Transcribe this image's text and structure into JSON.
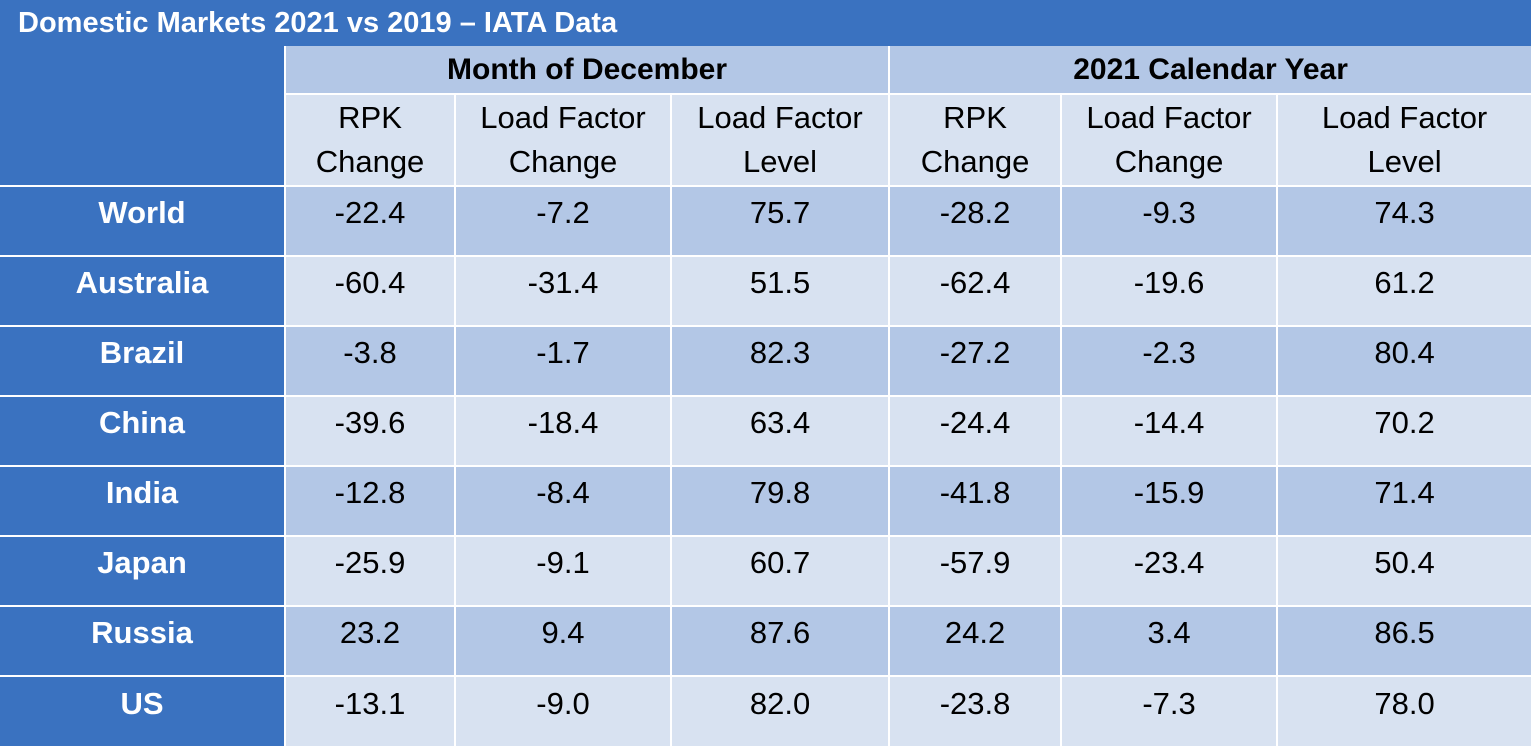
{
  "title": "Domestic Markets 2021 vs 2019 – IATA Data",
  "groups": [
    "Month of December",
    "2021 Calendar Year"
  ],
  "subheaders": [
    [
      "RPK",
      "Change"
    ],
    [
      "Load Factor",
      "Change"
    ],
    [
      "Load Factor",
      "Level"
    ],
    [
      "RPK",
      "Change"
    ],
    [
      "Load Factor",
      "Change"
    ],
    [
      "Load Factor",
      "Level"
    ]
  ],
  "rows": [
    {
      "country": "World",
      "values": [
        "-22.4",
        "-7.2",
        "75.7",
        "-28.2",
        "-9.3",
        "74.3"
      ]
    },
    {
      "country": "Australia",
      "values": [
        "-60.4",
        "-31.4",
        "51.5",
        "-62.4",
        "-19.6",
        "61.2"
      ]
    },
    {
      "country": "Brazil",
      "values": [
        "-3.8",
        "-1.7",
        "82.3",
        "-27.2",
        "-2.3",
        "80.4"
      ]
    },
    {
      "country": "China",
      "values": [
        "-39.6",
        "-18.4",
        "63.4",
        "-24.4",
        "-14.4",
        "70.2"
      ]
    },
    {
      "country": "India",
      "values": [
        "-12.8",
        "-8.4",
        "79.8",
        "-41.8",
        "-15.9",
        "71.4"
      ]
    },
    {
      "country": "Japan",
      "values": [
        "-25.9",
        "-9.1",
        "60.7",
        "-57.9",
        "-23.4",
        "50.4"
      ]
    },
    {
      "country": "Russia",
      "values": [
        "23.2",
        "9.4",
        "87.6",
        "24.2",
        "3.4",
        "86.5"
      ]
    },
    {
      "country": "US",
      "values": [
        "-13.1",
        "-9.0",
        "82.0",
        "-23.8",
        "-7.3",
        "78.0"
      ]
    }
  ]
}
